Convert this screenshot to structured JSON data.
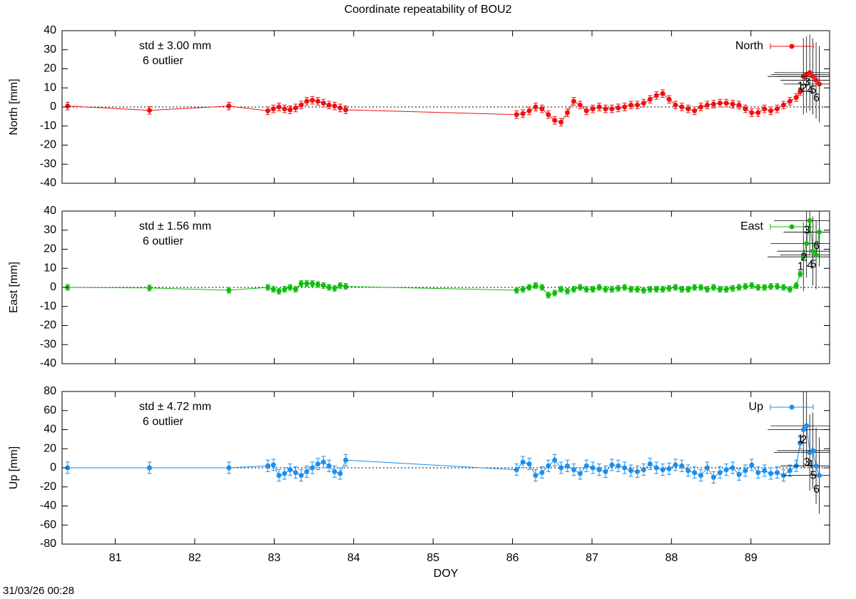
{
  "footer": "31/03/26 00:28",
  "chart_data": [
    {
      "type": "line",
      "title": "Coordinate repeatability of BOU2",
      "ylabel": "North [mm]",
      "xlim": [
        80.33,
        89.99
      ],
      "xticks": [
        81,
        82,
        83,
        84,
        85,
        86,
        87,
        88,
        89
      ],
      "ylim": [
        -40,
        40
      ],
      "yticks": [
        -40,
        -30,
        -20,
        -10,
        0,
        10,
        20,
        30,
        40
      ],
      "zero_line": true,
      "annotations": [
        {
          "text": "std ± 3.00 mm",
          "color": "#ee1111"
        },
        {
          "text": "6 outlier",
          "color": "#000000"
        }
      ],
      "series": [
        {
          "name": "North",
          "color": "#ee1111",
          "error": 2,
          "x": [
            80.4,
            81.43,
            82.43,
            82.92,
            82.99,
            83.06,
            83.13,
            83.2,
            83.27,
            83.34,
            83.41,
            83.48,
            83.55,
            83.62,
            83.69,
            83.76,
            83.83,
            83.9,
            86.05,
            86.13,
            86.21,
            86.29,
            86.37,
            86.45,
            86.53,
            86.61,
            86.69,
            86.77,
            86.85,
            86.93,
            87.01,
            87.09,
            87.17,
            87.25,
            87.33,
            87.41,
            87.49,
            87.57,
            87.65,
            87.73,
            87.81,
            87.89,
            87.97,
            88.05,
            88.13,
            88.21,
            88.29,
            88.37,
            88.45,
            88.53,
            88.61,
            88.69,
            88.77,
            88.85,
            88.93,
            89.01,
            89.09,
            89.17,
            89.25,
            89.33,
            89.41,
            89.49,
            89.57,
            89.62
          ],
          "values": [
            0.5,
            -1.8,
            0.5,
            -2,
            -1,
            0,
            -1,
            -1.5,
            -0.5,
            1,
            3,
            3.5,
            3,
            2,
            1,
            0.5,
            -0.5,
            -1.5,
            -4,
            -3.5,
            -2,
            0,
            -1,
            -4,
            -7,
            -8,
            -3,
            3,
            1,
            -2,
            -1,
            0,
            -1,
            -1,
            -0.5,
            0,
            1,
            1,
            2,
            4,
            6,
            7,
            4,
            1,
            0,
            -1,
            -2,
            0,
            1,
            1.5,
            2,
            2,
            1.5,
            1,
            -1,
            -3,
            -3,
            -1,
            -2,
            -1,
            1,
            3,
            5,
            8
          ]
        }
      ],
      "outliers": {
        "x": [
          89.66,
          89.7,
          89.74,
          89.78,
          89.82,
          89.86
        ],
        "values": [
          16,
          17,
          18,
          16,
          14,
          12
        ],
        "labels": [
          "1",
          "2",
          "3",
          "4",
          "5",
          "6"
        ],
        "x_error": 0.45,
        "y_error": 20
      }
    },
    {
      "type": "line",
      "ylabel": "East [mm]",
      "xlim": [
        80.33,
        89.99
      ],
      "xticks": [
        81,
        82,
        83,
        84,
        85,
        86,
        87,
        88,
        89
      ],
      "ylim": [
        -40,
        40
      ],
      "yticks": [
        -40,
        -30,
        -20,
        -10,
        0,
        10,
        20,
        30,
        40
      ],
      "zero_line": true,
      "annotations": [
        {
          "text": "std ± 1.56 mm",
          "color": "#11bb11"
        },
        {
          "text": "6 outlier",
          "color": "#000000"
        }
      ],
      "series": [
        {
          "name": "East",
          "color": "#11bb11",
          "error": 1.5,
          "x": [
            80.4,
            81.43,
            82.43,
            82.92,
            82.99,
            83.06,
            83.13,
            83.2,
            83.27,
            83.34,
            83.41,
            83.48,
            83.55,
            83.62,
            83.69,
            83.76,
            83.83,
            83.9,
            86.05,
            86.13,
            86.21,
            86.29,
            86.37,
            86.45,
            86.53,
            86.61,
            86.69,
            86.77,
            86.85,
            86.93,
            87.01,
            87.09,
            87.17,
            87.25,
            87.33,
            87.41,
            87.49,
            87.57,
            87.65,
            87.73,
            87.81,
            87.89,
            87.97,
            88.05,
            88.13,
            88.21,
            88.29,
            88.37,
            88.45,
            88.53,
            88.61,
            88.69,
            88.77,
            88.85,
            88.93,
            89.01,
            89.09,
            89.17,
            89.25,
            89.33,
            89.41,
            89.49,
            89.57,
            89.62
          ],
          "values": [
            0,
            -0.3,
            -1.5,
            0,
            -1,
            -2,
            -1,
            0,
            -1,
            2,
            2,
            2,
            1.5,
            1,
            0,
            -0.5,
            1,
            0.5,
            -1.5,
            -1,
            0,
            1,
            0,
            -4,
            -3,
            -1,
            -2,
            -1,
            0,
            -1,
            -1,
            0,
            -1,
            -1,
            -0.5,
            0,
            -1,
            -1,
            -1.5,
            -1,
            -1,
            -1,
            -0.5,
            0,
            -1,
            -1,
            0,
            0,
            -1,
            0,
            -1,
            -1,
            -0.5,
            0,
            0.5,
            1,
            0,
            0,
            0.5,
            0.5,
            0,
            -1,
            1,
            7
          ]
        }
      ],
      "outliers": {
        "x": [
          89.66,
          89.7,
          89.74,
          89.78,
          89.82,
          89.86
        ],
        "values": [
          16,
          23,
          35,
          19,
          17,
          29
        ],
        "labels": [
          "1",
          "2",
          "3",
          "4",
          "5",
          "6"
        ],
        "x_error": 0.45,
        "y_error": 18
      }
    },
    {
      "type": "line",
      "ylabel": "Up [mm]",
      "xlabel": "DOY",
      "xlim": [
        80.33,
        89.99
      ],
      "xticks": [
        81,
        82,
        83,
        84,
        85,
        86,
        87,
        88,
        89
      ],
      "ylim": [
        -80,
        80
      ],
      "yticks": [
        -80,
        -60,
        -40,
        -20,
        0,
        20,
        40,
        60,
        80
      ],
      "zero_line": true,
      "annotations": [
        {
          "text": "std ± 4.72 mm",
          "color": "#1a8fee"
        },
        {
          "text": "6 outlier",
          "color": "#000000"
        }
      ],
      "series": [
        {
          "name": "Up",
          "color": "#1a8fee",
          "error": 6,
          "x": [
            80.4,
            81.43,
            82.43,
            82.92,
            82.99,
            83.06,
            83.13,
            83.2,
            83.27,
            83.34,
            83.41,
            83.48,
            83.55,
            83.62,
            83.69,
            83.76,
            83.83,
            83.9,
            86.05,
            86.13,
            86.21,
            86.29,
            86.37,
            86.45,
            86.53,
            86.61,
            86.69,
            86.77,
            86.85,
            86.93,
            87.01,
            87.09,
            87.17,
            87.25,
            87.33,
            87.41,
            87.49,
            87.57,
            87.65,
            87.73,
            87.81,
            87.89,
            87.97,
            88.05,
            88.13,
            88.21,
            88.29,
            88.37,
            88.45,
            88.53,
            88.61,
            88.69,
            88.77,
            88.85,
            88.93,
            89.01,
            89.09,
            89.17,
            89.25,
            89.33,
            89.41,
            89.49,
            89.57,
            89.62
          ],
          "values": [
            0,
            0,
            0,
            2,
            3,
            -8,
            -6,
            -2,
            -5,
            -8,
            -4,
            0,
            4,
            6,
            2,
            -4,
            -6,
            8,
            -2,
            6,
            4,
            -8,
            -5,
            2,
            8,
            0,
            2,
            -2,
            -6,
            2,
            0,
            -2,
            -4,
            3,
            2,
            0,
            -3,
            -4,
            -2,
            4,
            0,
            -2,
            -1,
            3,
            2,
            -3,
            -5,
            -8,
            0,
            -10,
            -5,
            -2,
            0,
            -7,
            -3,
            3,
            -5,
            -3,
            -6,
            -5,
            -8,
            -3,
            2,
            26
          ]
        }
      ],
      "outliers": {
        "x": [
          89.66,
          89.7,
          89.74,
          89.78,
          89.82,
          89.86
        ],
        "values": [
          40,
          44,
          16,
          18,
          2,
          -8
        ],
        "labels": [
          "1",
          "2",
          "3",
          "4",
          "5",
          "6"
        ],
        "x_error": 0.45,
        "y_error": 40
      }
    }
  ]
}
